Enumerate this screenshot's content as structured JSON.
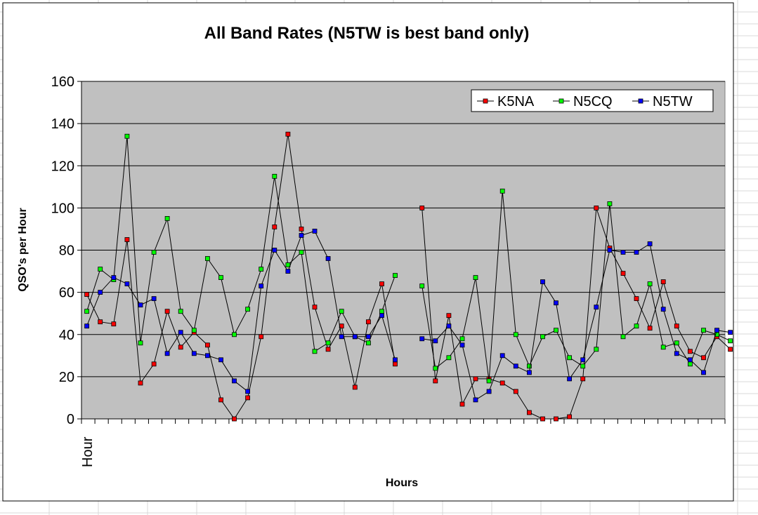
{
  "chart_data": {
    "type": "line",
    "title": "All Band Rates (N5TW is best band only)",
    "xlabel": "Hours",
    "ylabel": "QSO's per Hour",
    "x_tick_label": "Hour",
    "ylim": [
      0,
      160
    ],
    "yticks": [
      0,
      20,
      40,
      60,
      80,
      100,
      120,
      140,
      160
    ],
    "x_count": 48,
    "grid": true,
    "legend_position": "top-right",
    "series": [
      {
        "name": "K5NA",
        "color": "#ff0000",
        "values": [
          59,
          46,
          45,
          85,
          17,
          26,
          51,
          34,
          41,
          35,
          9,
          0,
          10,
          39,
          91,
          135,
          90,
          53,
          33,
          44,
          15,
          46,
          64,
          26,
          null,
          100,
          18,
          49,
          7,
          19,
          19,
          17,
          13,
          3,
          0,
          0,
          1,
          19,
          100,
          81,
          69,
          57,
          43,
          65,
          44,
          32,
          29,
          39,
          33
        ]
      },
      {
        "name": "N5CQ",
        "color": "#00ff00",
        "values": [
          51,
          71,
          66,
          134,
          36,
          79,
          95,
          51,
          42,
          76,
          67,
          40,
          52,
          71,
          115,
          73,
          79,
          32,
          36,
          51,
          39,
          36,
          51,
          68,
          null,
          63,
          24,
          29,
          38,
          67,
          18,
          108,
          40,
          25,
          39,
          42,
          29,
          25,
          33,
          102,
          39,
          44,
          64,
          34,
          36,
          26,
          42,
          40,
          37
        ]
      },
      {
        "name": "N5TW",
        "color": "#0000ff",
        "values": [
          44,
          60,
          67,
          64,
          54,
          57,
          31,
          41,
          31,
          30,
          28,
          18,
          13,
          63,
          80,
          70,
          87,
          89,
          76,
          39,
          39,
          39,
          49,
          28,
          null,
          38,
          37,
          44,
          35,
          9,
          13,
          30,
          25,
          22,
          65,
          55,
          19,
          28,
          53,
          80,
          79,
          79,
          83,
          52,
          31,
          28,
          22,
          42,
          41
        ]
      }
    ]
  }
}
